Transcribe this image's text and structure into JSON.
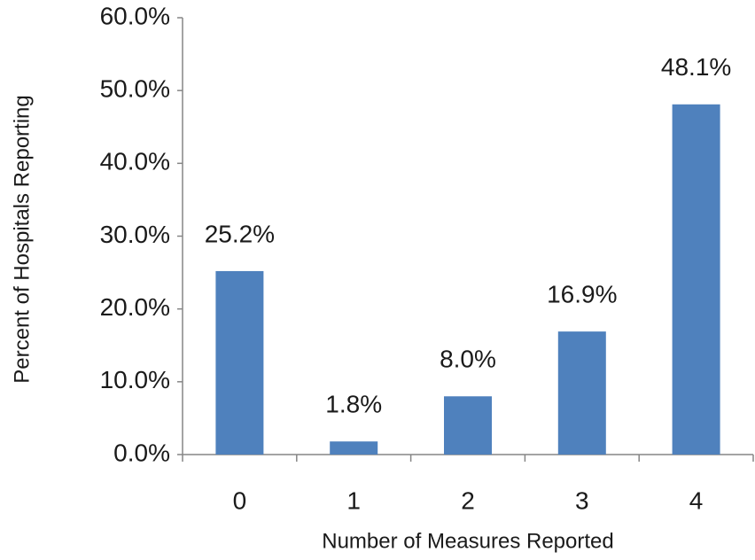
{
  "chart_data": {
    "type": "bar",
    "x_label": "Number of Measures Reported",
    "y_label": "Percent of Hospitals Reporting",
    "categories": [
      "0",
      "1",
      "2",
      "3",
      "4"
    ],
    "values": [
      25.2,
      1.8,
      8.0,
      16.9,
      48.1
    ],
    "value_labels": [
      "25.2%",
      "1.8%",
      "8.0%",
      "16.9%",
      "48.1%"
    ],
    "color": "#4f81bd",
    "ylim": [
      0,
      60
    ],
    "yticks": [
      {
        "value": 0,
        "label": "0.0%"
      },
      {
        "value": 10,
        "label": "10.0%"
      },
      {
        "value": 20,
        "label": "20.0%"
      },
      {
        "value": 30,
        "label": "30.0%"
      },
      {
        "value": 40,
        "label": "40.0%"
      },
      {
        "value": 50,
        "label": "50.0%"
      },
      {
        "value": 60,
        "label": "60.0%"
      }
    ],
    "grid": false
  }
}
